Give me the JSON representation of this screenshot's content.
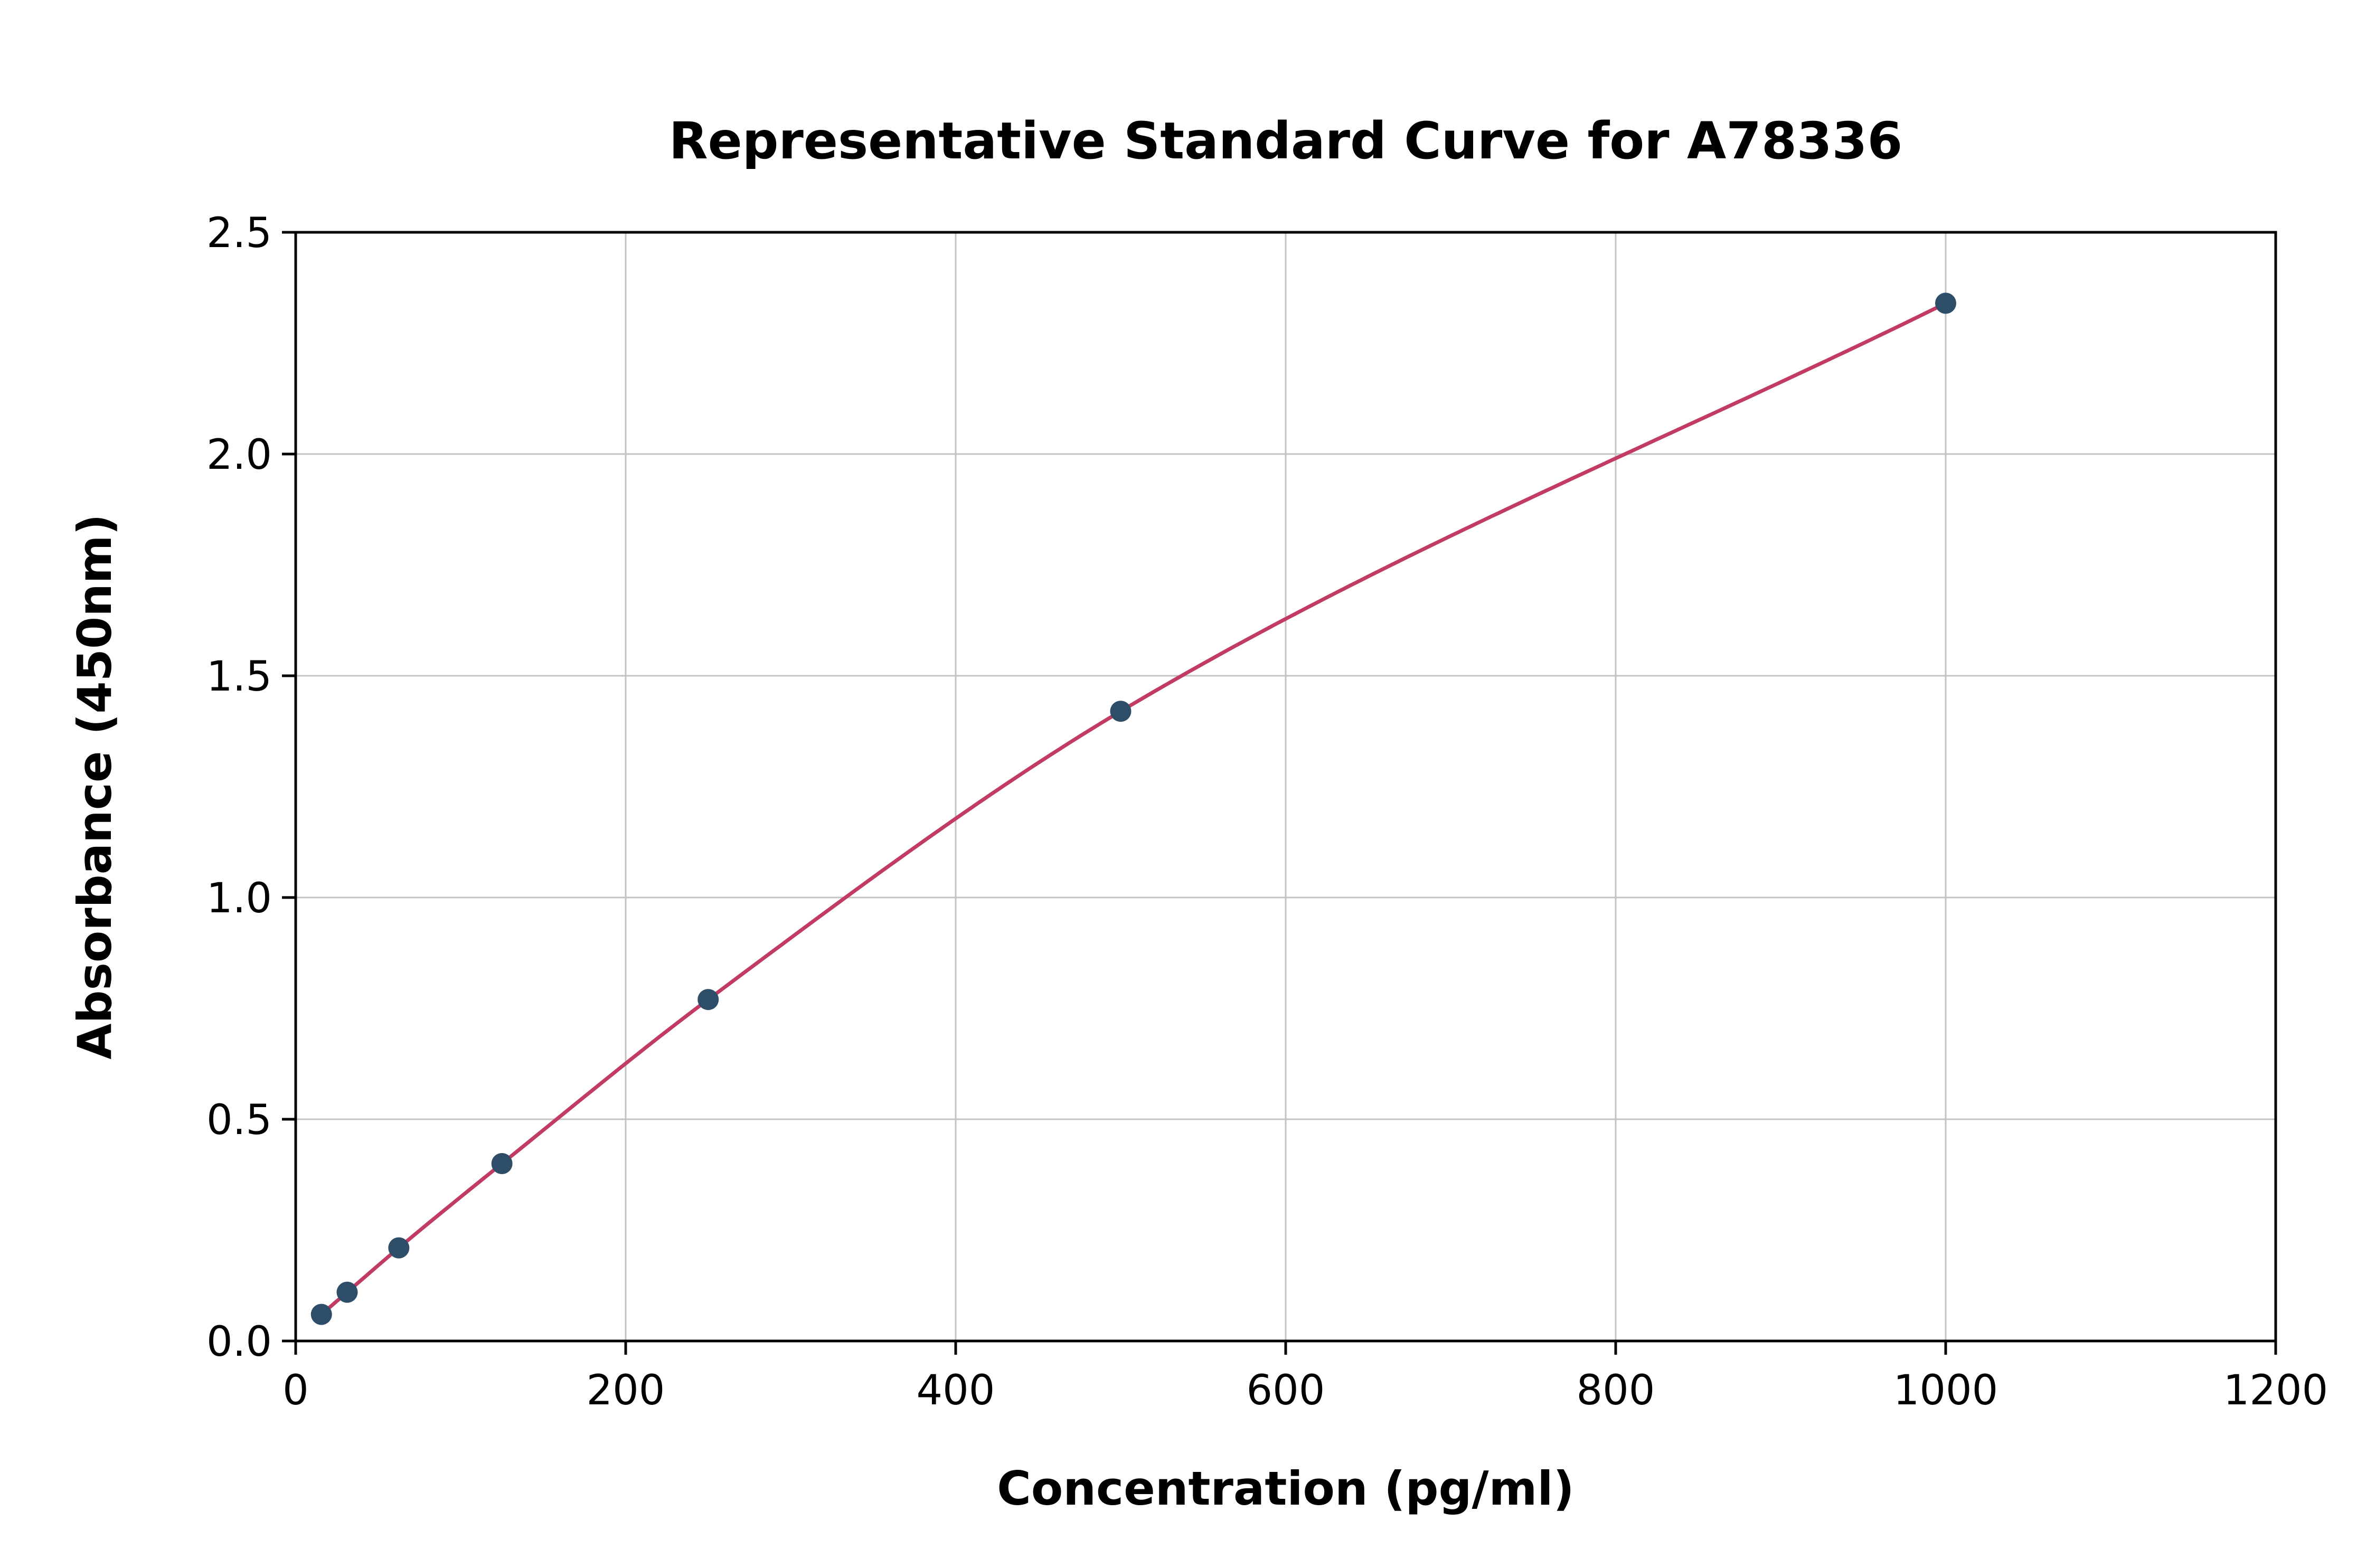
{
  "chart_data": {
    "type": "scatter",
    "title": "Representative Standard Curve for A78336",
    "xlabel": "Concentration (pg/ml)",
    "ylabel": "Absorbance (450nm)",
    "xlim": [
      0,
      1200
    ],
    "ylim": [
      0,
      2.5
    ],
    "xticks": [
      0,
      200,
      400,
      600,
      800,
      1000,
      1200
    ],
    "xtick_labels": [
      "0",
      "200",
      "400",
      "600",
      "800",
      "1000",
      "1200"
    ],
    "yticks": [
      0,
      0.5,
      1.0,
      1.5,
      2.0,
      2.5
    ],
    "ytick_labels": [
      "0.0",
      "0.5",
      "1.0",
      "1.5",
      "2.0",
      "2.5"
    ],
    "grid": true,
    "legend": "none",
    "points": {
      "x": [
        15.6,
        31.2,
        62.5,
        125,
        250,
        500,
        1000
      ],
      "y": [
        0.06,
        0.11,
        0.21,
        0.4,
        0.77,
        1.42,
        2.34
      ]
    },
    "colors": {
      "curve": "#c13b63",
      "point": "#2e4d68",
      "grid": "#c3c3c3",
      "axis": "#000000",
      "background": "#ffffff"
    }
  }
}
